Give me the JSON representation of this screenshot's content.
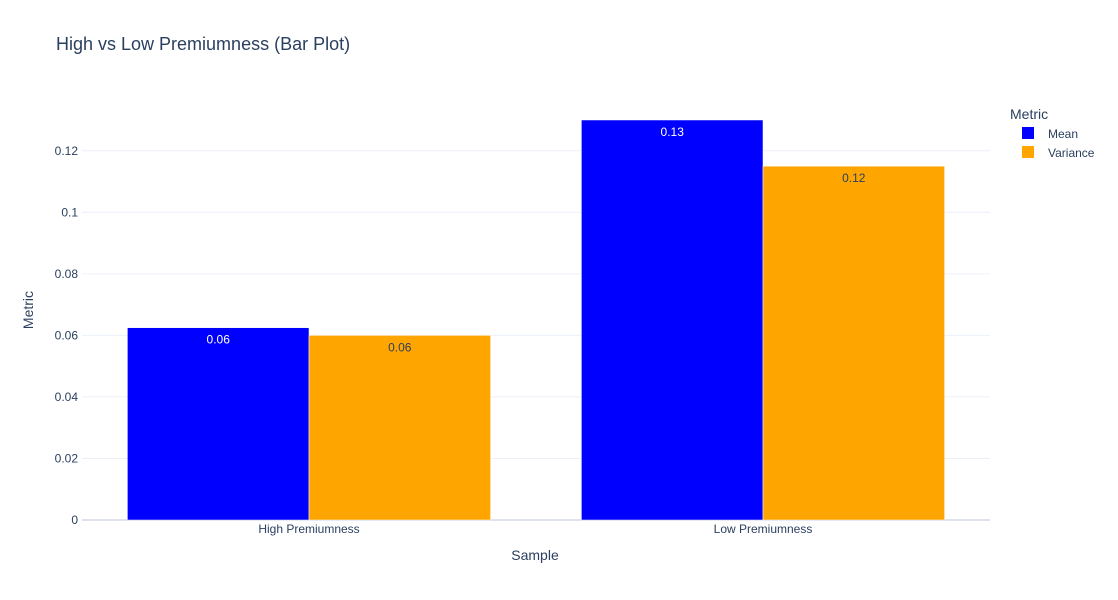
{
  "chart_data": {
    "type": "bar",
    "title": "High vs Low Premiumness (Bar Plot)",
    "xlabel": "Sample",
    "ylabel": "Metric",
    "categories": [
      "High Premiumness",
      "Low Premiumness"
    ],
    "series": [
      {
        "name": "Mean",
        "color": "#0000ff",
        "values": [
          0.0625,
          0.13
        ],
        "labels": [
          "0.06",
          "0.13"
        ],
        "label_color": "#ffffff"
      },
      {
        "name": "Variance",
        "color": "#ffa500",
        "values": [
          0.06,
          0.115
        ],
        "labels": [
          "0.06",
          "0.12"
        ],
        "label_color": "#2a3f5f"
      }
    ],
    "ylim": [
      0,
      0.1365
    ],
    "yticks": [
      0,
      0.02,
      0.04,
      0.06,
      0.08,
      0.1,
      0.12
    ],
    "ytick_labels": [
      "0",
      "0.02",
      "0.04",
      "0.06",
      "0.08",
      "0.1",
      "0.12"
    ],
    "legend_title": "Metric",
    "legend_position": "top-right",
    "grid": true,
    "gridline_color": "#ebf0f8"
  }
}
